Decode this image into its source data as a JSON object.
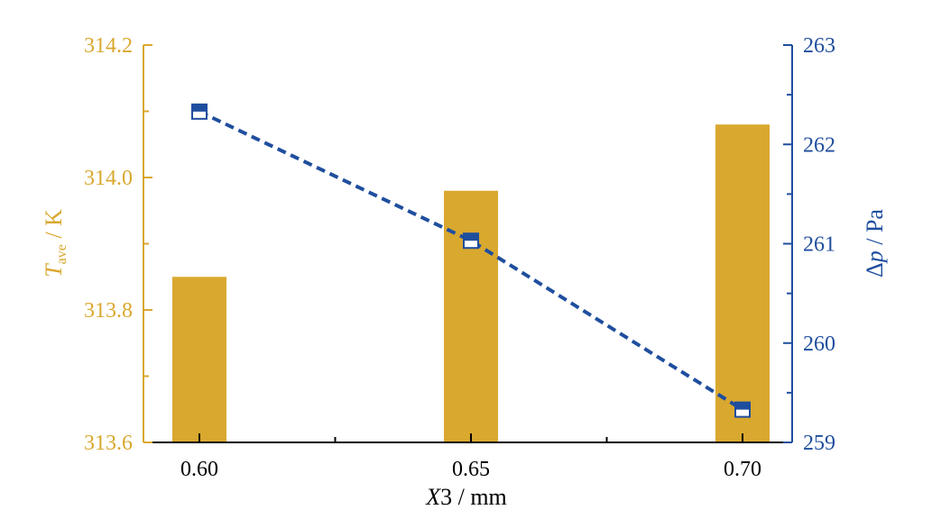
{
  "chart_data": {
    "type": "bar",
    "categories": [
      "0.60",
      "0.65",
      "0.70"
    ],
    "series": [
      {
        "axis": "left",
        "type": "bar",
        "color": "#D9A82F",
        "values": [
          313.85,
          313.98,
          314.08
        ]
      },
      {
        "axis": "right",
        "type": "line",
        "color": "#1F4E9E",
        "line_style": "dashed",
        "marker": "half-filled-square",
        "values": [
          262.33,
          261.03,
          259.33
        ]
      }
    ],
    "xlabel": {
      "var": "X",
      "rest": "3 / mm"
    },
    "ylabel_left": {
      "var": "T",
      "sub": "ave",
      "rest": " / K"
    },
    "ylabel_right": {
      "var": "Δ",
      "var2": "p",
      "rest": " / Pa"
    },
    "ylim_left": [
      313.6,
      314.2
    ],
    "ylim_right": [
      259,
      263
    ],
    "yticks_left": [
      "313.6",
      "313.8",
      "314.0",
      "314.2"
    ],
    "yticks_right": [
      "259",
      "260",
      "261",
      "262",
      "263"
    ],
    "xticks": [
      "0.60",
      "0.65",
      "0.70"
    ],
    "grid": false,
    "colors": {
      "left_axis": "#D9A82F",
      "right_axis": "#1F4E9E",
      "x_axis": "#000000"
    }
  }
}
